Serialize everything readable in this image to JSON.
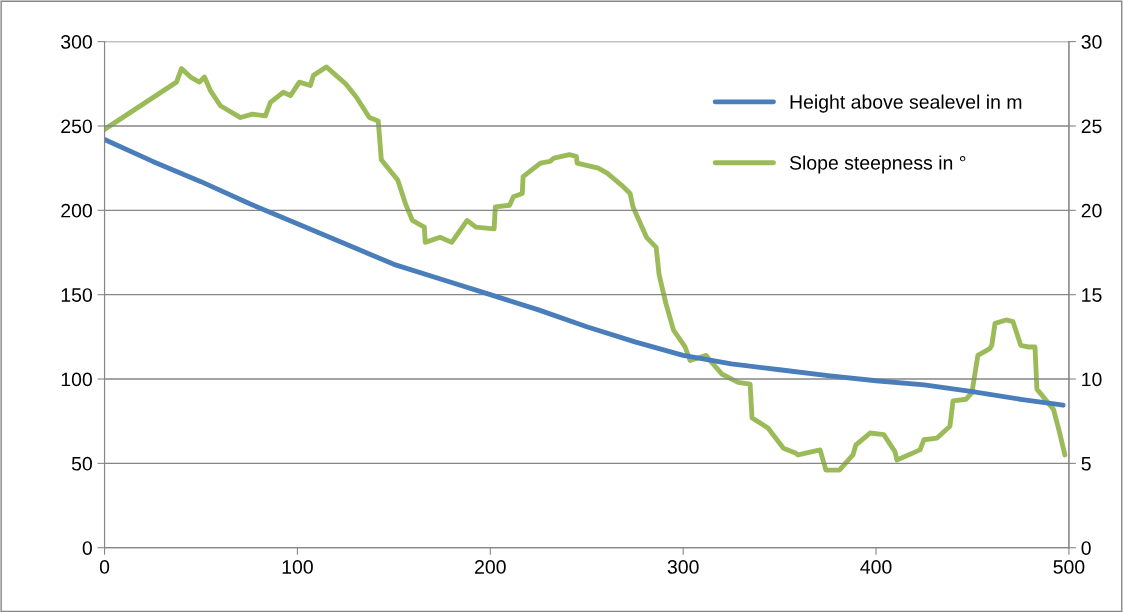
{
  "chart_data": {
    "type": "line",
    "xlim": [
      0,
      500
    ],
    "xticks": [
      0,
      100,
      200,
      300,
      400,
      500
    ],
    "ylim": [
      0,
      300
    ],
    "yticks": [
      0,
      50,
      100,
      150,
      200,
      250,
      300
    ],
    "y2lim": [
      0,
      30
    ],
    "y2ticks": [
      0,
      5,
      10,
      15,
      20,
      25,
      30
    ],
    "grid": "y",
    "legend": "top right",
    "marker": "none",
    "line_style": "solid",
    "series": [
      {
        "name": "Height above sealevel in m",
        "color": "#4a7ebb",
        "x": [
          0,
          25,
          50,
          75,
          100,
          125,
          150,
          175,
          200,
          225,
          250,
          275,
          300,
          325,
          350,
          375,
          400,
          425,
          450,
          475,
          497
        ],
        "values": [
          242,
          229,
          217,
          204,
          192,
          180,
          168,
          159,
          150,
          141,
          131,
          122,
          114,
          109,
          105.5,
          102,
          99,
          96.5,
          92.5,
          88,
          84.5
        ]
      },
      {
        "name": "Slope steepness in °",
        "color": "#9bbb59",
        "axis": "y2",
        "x": [
          0,
          37.3,
          39.9,
          44.6,
          49.2,
          51.8,
          54.9,
          60.1,
          70.5,
          76.7,
          83.4,
          86,
          92.7,
          96.4,
          101,
          106.7,
          108.3,
          115,
          120,
          125,
          130.6,
          137.3,
          141.9,
          143.5,
          152,
          156,
          159.6,
          165.8,
          166.3,
          174,
          180,
          188,
          192.5,
          202,
          202.6,
          210,
          212,
          216.6,
          217,
          226,
          231,
          233,
          241,
          244.6,
          245,
          256,
          260.6,
          268,
          272.5,
          274,
          281,
          286,
          287.5,
          291,
          295,
          301,
          303.6,
          311.9,
          313.9,
          320,
          328.5,
          334.7,
          335.7,
          344,
          352,
          358.5,
          359.5,
          371,
          374,
          381,
          388,
          389.6,
          396.9,
          404,
          409.8,
          410.8,
          422.8,
          424.8,
          431.6,
          438.3,
          439.9,
          446.6,
          449.7,
          452.8,
          459,
          460,
          461.7,
          467.4,
          471,
          475,
          478.8,
          482.4,
          483.4,
          492,
          495,
          497.9
        ],
        "values": [
          24.8,
          27.6,
          28.4,
          27.9,
          27.6,
          27.9,
          27.1,
          26.2,
          25.5,
          25.7,
          25.6,
          26.4,
          27.0,
          26.8,
          27.6,
          27.4,
          28.0,
          28.5,
          28.0,
          27.5,
          26.7,
          25.5,
          25.3,
          23.0,
          21.8,
          20.4,
          19.4,
          19.0,
          18.1,
          18.4,
          18.1,
          19.4,
          19.0,
          18.9,
          20.2,
          20.3,
          20.8,
          21.0,
          22.0,
          22.8,
          22.9,
          23.1,
          23.3,
          23.2,
          22.8,
          22.5,
          22.2,
          21.5,
          21.0,
          20.2,
          18.4,
          17.8,
          16.2,
          14.5,
          12.9,
          11.9,
          11.1,
          11.4,
          11.1,
          10.3,
          9.8,
          9.7,
          7.7,
          7.1,
          5.9,
          5.6,
          5.5,
          5.8,
          4.6,
          4.6,
          5.5,
          6.1,
          6.8,
          6.7,
          5.7,
          5.2,
          5.8,
          6.4,
          6.5,
          7.2,
          8.7,
          8.8,
          9.2,
          11.4,
          11.8,
          12.0,
          13.3,
          13.5,
          13.4,
          12.0,
          11.9,
          11.9,
          9.4,
          8.2,
          6.9,
          5.5
        ]
      }
    ]
  }
}
